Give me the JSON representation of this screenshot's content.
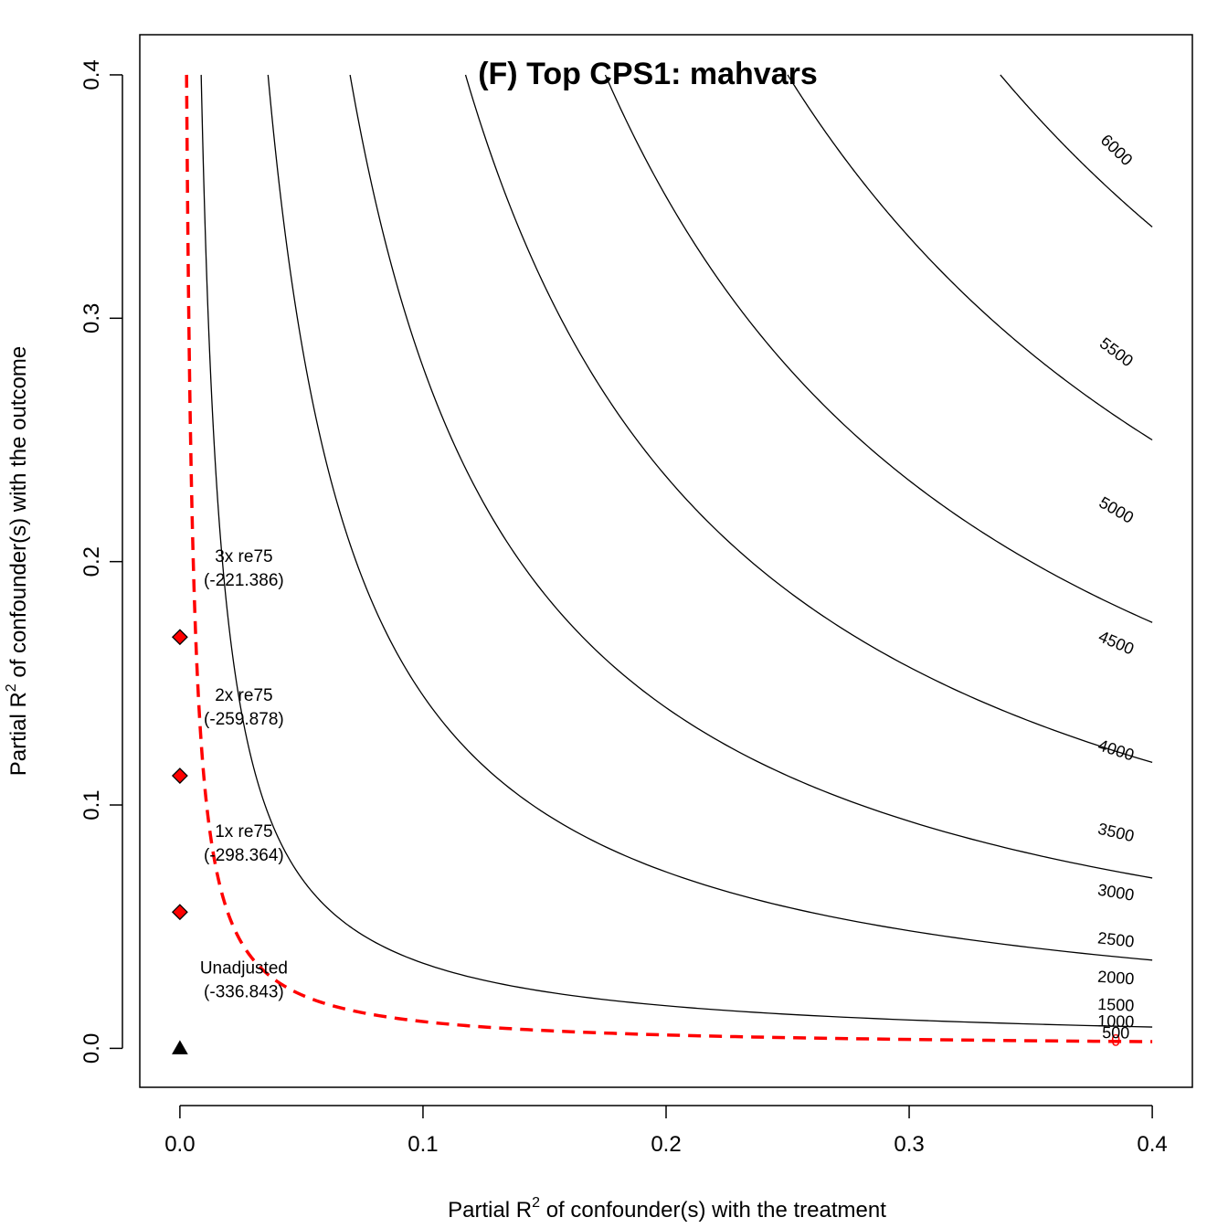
{
  "chart_data": {
    "type": "contour",
    "title": "(F) Top CPS1: mahvars",
    "xlabel_main": "Partial R",
    "xlabel_sup": "2",
    "xlabel_rest": " of confounder(s) with the treatment",
    "ylabel_main": "Partial R",
    "ylabel_sup": "2",
    "ylabel_rest": " of confounder(s) with the outcome",
    "xlim": [
      -0.0165,
      0.4165
    ],
    "ylim": [
      -0.016,
      0.4165
    ],
    "x_ticks": [
      0.0,
      0.1,
      0.2,
      0.3,
      0.4
    ],
    "x_tick_labels": [
      "0.0",
      "0.1",
      "0.2",
      "0.3",
      "0.4"
    ],
    "y_ticks": [
      0.0,
      0.1,
      0.2,
      0.3,
      0.4
    ],
    "y_tick_labels": [
      "0.0",
      "0.1",
      "0.2",
      "0.3",
      "0.4"
    ],
    "grid": false,
    "contour_levels": [
      {
        "level": 0,
        "label": "0",
        "k": 0.0011,
        "color": "#ff0000",
        "dashed": true
      },
      {
        "level": 500,
        "label": "500",
        "k": 0.0023,
        "color": "#000000",
        "dashed": false
      },
      {
        "level": 1000,
        "label": "1000",
        "k": 0.0041,
        "color": "#000000",
        "dashed": false
      },
      {
        "level": 1500,
        "label": "1500",
        "k": 0.0067,
        "color": "#000000",
        "dashed": false
      },
      {
        "level": 2000,
        "label": "2000",
        "k": 0.011,
        "color": "#000000",
        "dashed": false
      },
      {
        "level": 2500,
        "label": "2500",
        "k": 0.017,
        "color": "#000000",
        "dashed": false
      },
      {
        "level": 3000,
        "label": "3000",
        "k": 0.0245,
        "color": "#000000",
        "dashed": false
      },
      {
        "level": 3500,
        "label": "3500",
        "k": 0.034,
        "color": "#000000",
        "dashed": false
      },
      {
        "level": 4000,
        "label": "4000",
        "k": 0.047,
        "color": "#000000",
        "dashed": false
      },
      {
        "level": 4500,
        "label": "4500",
        "k": 0.064,
        "color": "#000000",
        "dashed": false
      },
      {
        "level": 5000,
        "label": "5000",
        "k": 0.085,
        "color": "#000000",
        "dashed": false
      },
      {
        "level": 5500,
        "label": "5500",
        "k": 0.11,
        "color": "#000000",
        "dashed": false
      },
      {
        "level": 6000,
        "label": "6000",
        "k": 0.142,
        "color": "#000000",
        "dashed": false
      }
    ],
    "extra_contours_k": [
      0.0035,
      0.0145,
      0.028,
      0.047,
      0.07,
      0.1,
      0.135,
      0.172,
      0.21,
      0.248,
      0.285,
      0.32,
      0.355
    ],
    "points": [
      {
        "name": "Unadjusted",
        "x": 0.0,
        "y": 0.0,
        "shape": "triangle",
        "color": "#000000",
        "label1": "Unadjusted",
        "label2": "(-336.843)"
      },
      {
        "name": "1x re75",
        "x": 0.0,
        "y": 0.056,
        "shape": "diamond",
        "color": "#ff0000",
        "label1": "1x re75",
        "label2": "(-298.364)"
      },
      {
        "name": "2x re75",
        "x": 0.0,
        "y": 0.112,
        "shape": "diamond",
        "color": "#ff0000",
        "label1": "2x re75",
        "label2": "(-259.878)"
      },
      {
        "name": "3x re75",
        "x": 0.0,
        "y": 0.169,
        "shape": "diamond",
        "color": "#ff0000",
        "label1": "3x re75",
        "label2": "(-221.386)"
      }
    ]
  }
}
